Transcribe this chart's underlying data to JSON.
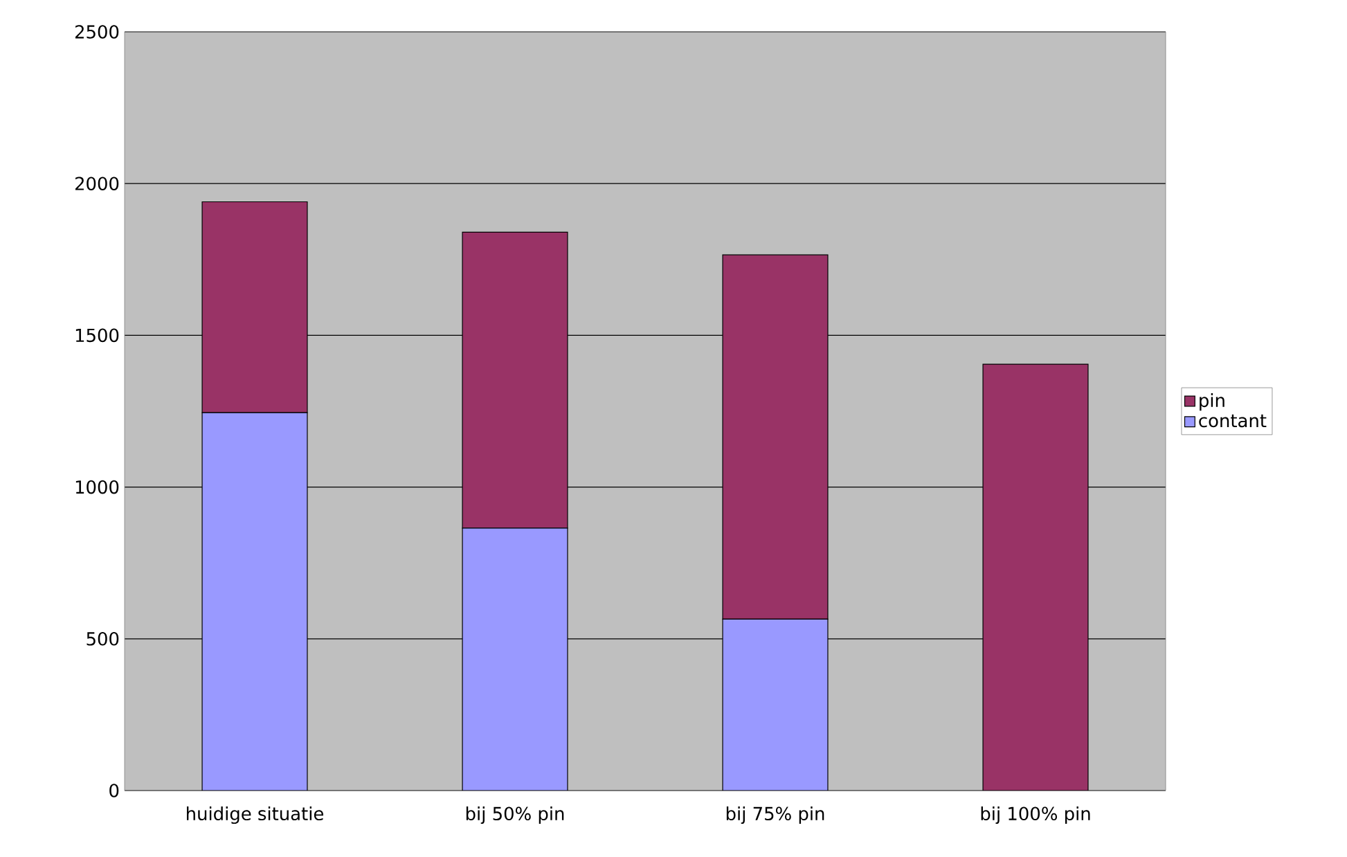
{
  "chart_data": {
    "type": "bar",
    "stacked": true,
    "categories": [
      "huidige situatie",
      "bij 50% pin",
      "bij 75% pin",
      "bij 100% pin"
    ],
    "series": [
      {
        "name": "contant",
        "color": "#9999ff",
        "values": [
          1245,
          865,
          565,
          0
        ]
      },
      {
        "name": "pin",
        "color": "#993366",
        "values": [
          695,
          975,
          1200,
          1405
        ]
      }
    ],
    "ylim": [
      0,
      2500
    ],
    "yticks": [
      0,
      500,
      1000,
      1500,
      2000,
      2500
    ],
    "grid": "y",
    "legend": "right"
  }
}
